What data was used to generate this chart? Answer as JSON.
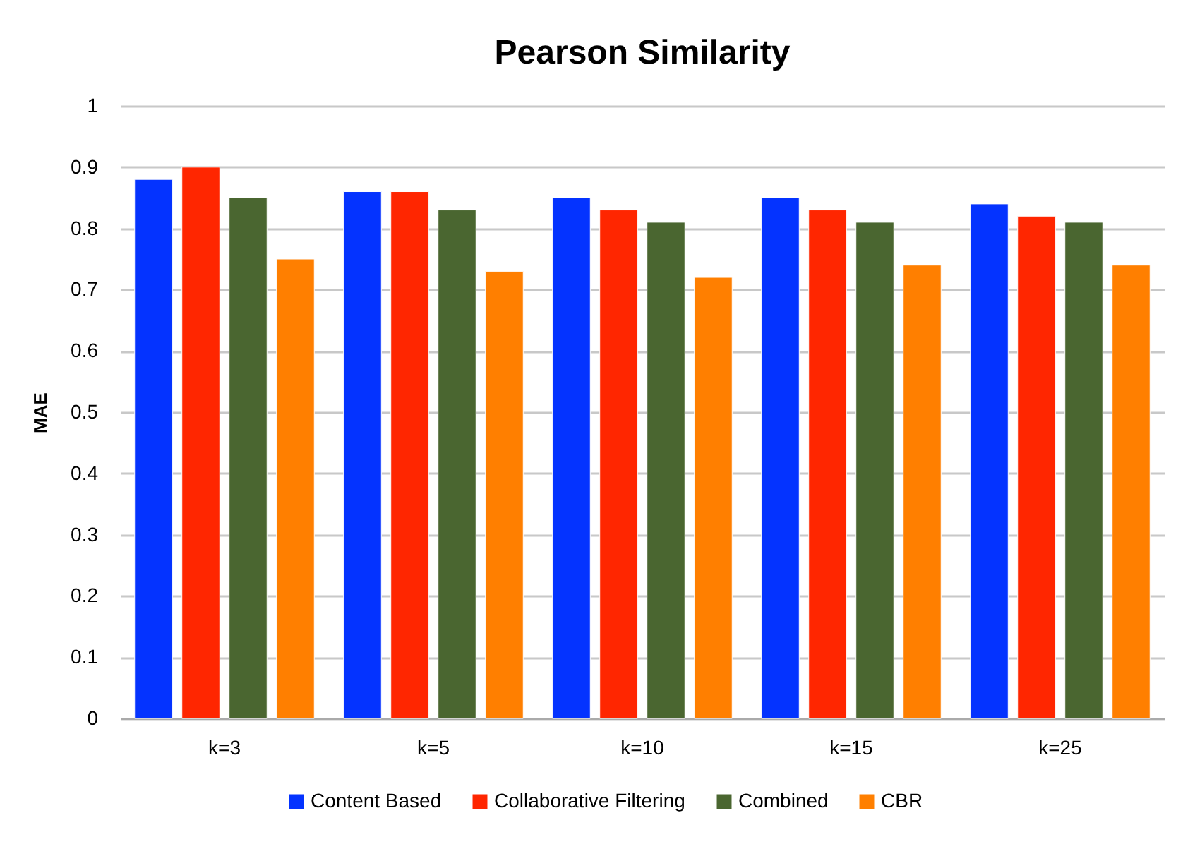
{
  "chart_data": {
    "type": "bar",
    "title": "Pearson Similarity",
    "ylabel": "MAE",
    "categories": [
      "k=3",
      "k=5",
      "k=10",
      "k=15",
      "k=25"
    ],
    "series": [
      {
        "name": "Content Based",
        "color": "#0433ff",
        "values": [
          0.88,
          0.86,
          0.85,
          0.85,
          0.84
        ]
      },
      {
        "name": "Collaborative Filtering",
        "color": "#ff2600",
        "values": [
          0.9,
          0.86,
          0.83,
          0.83,
          0.82
        ]
      },
      {
        "name": "Combined",
        "color": "#4a6630",
        "values": [
          0.85,
          0.83,
          0.81,
          0.81,
          0.81
        ]
      },
      {
        "name": "CBR",
        "color": "#ff7f00",
        "values": [
          0.75,
          0.73,
          0.72,
          0.74,
          0.74
        ]
      }
    ],
    "ylim": [
      0,
      1
    ],
    "yticks": [
      0,
      0.1,
      0.2,
      0.3,
      0.4,
      0.5,
      0.6,
      0.7,
      0.8,
      0.9,
      1
    ],
    "grid": "y",
    "legend": "bottom"
  }
}
